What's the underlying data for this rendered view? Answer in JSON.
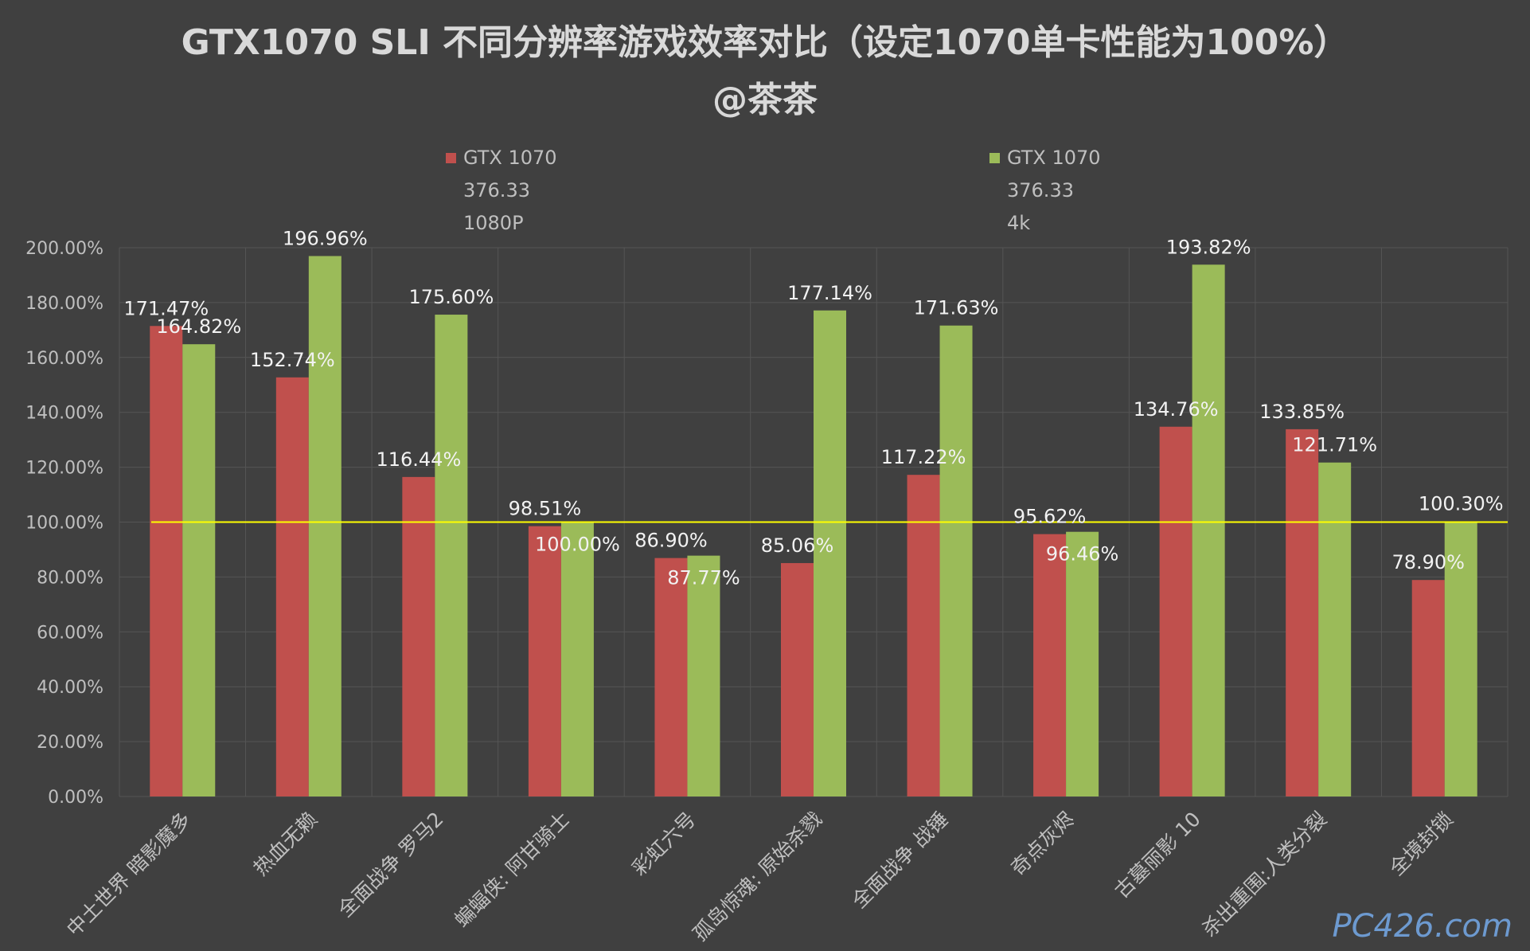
{
  "chart_data": {
    "type": "bar",
    "title": "GTX1070 SLI 不同分辨率游戏效率对比（设定1070单卡性能为100%）",
    "subtitle": "@茶茶",
    "categories": [
      "中土世界 暗影魔多",
      "热血无赖",
      "全面战争 罗马2",
      "蝙蝠侠: 阿甘骑士",
      "彩虹六号",
      "孤岛惊魂: 原始杀戮",
      "全面战争 战锤",
      "奇点灰烬",
      "古墓丽影 10",
      "杀出重围:人类分裂",
      "全境封锁"
    ],
    "series": [
      {
        "name": "GTX 1070 376.33 1080P",
        "name_lines": [
          "GTX 1070",
          "376.33",
          "1080P"
        ],
        "color": "#c0504d",
        "values": [
          171.47,
          152.74,
          116.44,
          98.51,
          86.9,
          85.06,
          117.22,
          95.62,
          134.76,
          133.85,
          78.9
        ],
        "labels": [
          "171.47%",
          "152.74%",
          "116.44%",
          "98.51%",
          "86.90%",
          "85.06%",
          "117.22%",
          "95.62%",
          "134.76%",
          "133.85%",
          "78.90%"
        ]
      },
      {
        "name": "GTX 1070 376.33 4k",
        "name_lines": [
          "GTX 1070",
          "376.33",
          "4k"
        ],
        "color": "#9bbb59",
        "values": [
          164.82,
          196.96,
          175.6,
          100.0,
          87.77,
          177.14,
          171.63,
          96.46,
          193.82,
          121.71,
          100.3
        ],
        "labels": [
          "164.82%",
          "196.96%",
          "175.60%",
          "100.00%",
          "87.77%",
          "177.14%",
          "171.63%",
          "96.46%",
          "193.82%",
          "121.71%",
          "100.30%"
        ]
      }
    ],
    "yticks": [
      0,
      20,
      40,
      60,
      80,
      100,
      120,
      140,
      160,
      180,
      200
    ],
    "ytick_labels": [
      "0.00%",
      "20.00%",
      "40.00%",
      "60.00%",
      "80.00%",
      "100.00%",
      "120.00%",
      "140.00%",
      "160.00%",
      "180.00%",
      "200.00%"
    ],
    "ylim": [
      0,
      200
    ],
    "reference_line": {
      "value": 100,
      "color": "#ffff00"
    },
    "grid": true,
    "legend_position": "top",
    "watermark": "PC426.com",
    "background": "#404040"
  }
}
